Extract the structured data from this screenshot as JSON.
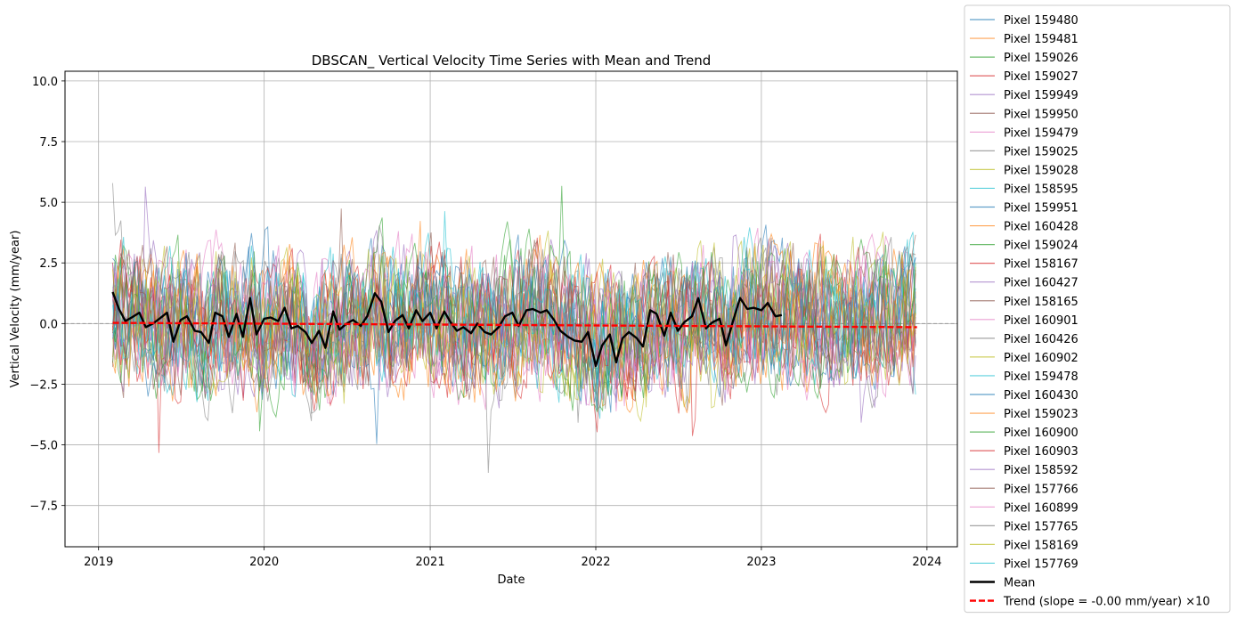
{
  "chart_data": {
    "type": "line",
    "title": "DBSCAN_ Vertical Velocity Time Series with Mean and Trend",
    "xlabel": "Date",
    "ylabel": "Vertical Velocity (mm/year)",
    "xlim": [
      "2018-10-19",
      "2024-03-08"
    ],
    "ylim": [
      -9.2,
      10.4
    ],
    "x_ticks": [
      "2019",
      "2020",
      "2021",
      "2022",
      "2023",
      "2024"
    ],
    "y_ticks": [
      "−7.5",
      "−5.0",
      "−2.5",
      "0.0",
      "2.5",
      "5.0",
      "7.5",
      "10.0"
    ],
    "grid": true,
    "legend_position": "outside-right",
    "date_range": [
      "2019-02-01",
      "2023-12-10"
    ],
    "sampling_interval_days": 6,
    "series": [
      {
        "name": "Pixel 159480",
        "color": "#1f77b4"
      },
      {
        "name": "Pixel 159481",
        "color": "#ff7f0e"
      },
      {
        "name": "Pixel 159026",
        "color": "#2ca02c"
      },
      {
        "name": "Pixel 159027",
        "color": "#d62728"
      },
      {
        "name": "Pixel 159949",
        "color": "#9467bd"
      },
      {
        "name": "Pixel 159950",
        "color": "#8c564b"
      },
      {
        "name": "Pixel 159479",
        "color": "#e377c2"
      },
      {
        "name": "Pixel 159025",
        "color": "#7f7f7f"
      },
      {
        "name": "Pixel 159028",
        "color": "#bcbd22"
      },
      {
        "name": "Pixel 158595",
        "color": "#17becf"
      },
      {
        "name": "Pixel 159951",
        "color": "#1f77b4"
      },
      {
        "name": "Pixel 160428",
        "color": "#ff7f0e"
      },
      {
        "name": "Pixel 159024",
        "color": "#2ca02c"
      },
      {
        "name": "Pixel 158167",
        "color": "#d62728"
      },
      {
        "name": "Pixel 160427",
        "color": "#9467bd"
      },
      {
        "name": "Pixel 158165",
        "color": "#8c564b"
      },
      {
        "name": "Pixel 160901",
        "color": "#e377c2"
      },
      {
        "name": "Pixel 160426",
        "color": "#7f7f7f"
      },
      {
        "name": "Pixel 160902",
        "color": "#bcbd22"
      },
      {
        "name": "Pixel 159478",
        "color": "#17becf"
      },
      {
        "name": "Pixel 160430",
        "color": "#1f77b4"
      },
      {
        "name": "Pixel 159023",
        "color": "#ff7f0e"
      },
      {
        "name": "Pixel 160900",
        "color": "#2ca02c"
      },
      {
        "name": "Pixel 160903",
        "color": "#d62728"
      },
      {
        "name": "Pixel 158592",
        "color": "#9467bd"
      },
      {
        "name": "Pixel 157766",
        "color": "#8c564b"
      },
      {
        "name": "Pixel 160899",
        "color": "#e377c2"
      },
      {
        "name": "Pixel 157765",
        "color": "#7f7f7f"
      },
      {
        "name": "Pixel 158169",
        "color": "#bcbd22"
      },
      {
        "name": "Pixel 157769",
        "color": "#17becf"
      }
    ],
    "mean": {
      "name": "Mean",
      "color": "#000000",
      "points": [
        [
          "2019-02-01",
          1.3
        ],
        [
          "2019-02-15",
          0.6
        ],
        [
          "2019-03-01",
          0.1
        ],
        [
          "2019-03-15",
          0.25
        ],
        [
          "2019-04-01",
          0.45
        ],
        [
          "2019-04-15",
          -0.15
        ],
        [
          "2019-05-01",
          0.0
        ],
        [
          "2019-05-15",
          0.2
        ],
        [
          "2019-06-01",
          0.45
        ],
        [
          "2019-06-15",
          -0.75
        ],
        [
          "2019-07-01",
          0.15
        ],
        [
          "2019-07-15",
          0.3
        ],
        [
          "2019-08-01",
          -0.3
        ],
        [
          "2019-08-15",
          -0.35
        ],
        [
          "2019-09-01",
          -0.8
        ],
        [
          "2019-09-15",
          0.45
        ],
        [
          "2019-10-01",
          0.3
        ],
        [
          "2019-10-15",
          -0.55
        ],
        [
          "2019-11-01",
          0.4
        ],
        [
          "2019-11-15",
          -0.55
        ],
        [
          "2019-12-01",
          1.05
        ],
        [
          "2019-12-15",
          -0.45
        ],
        [
          "2020-01-01",
          0.2
        ],
        [
          "2020-01-15",
          0.25
        ],
        [
          "2020-02-01",
          0.1
        ],
        [
          "2020-02-15",
          0.65
        ],
        [
          "2020-03-01",
          -0.2
        ],
        [
          "2020-03-15",
          -0.1
        ],
        [
          "2020-04-01",
          -0.35
        ],
        [
          "2020-04-15",
          -0.8
        ],
        [
          "2020-05-01",
          -0.3
        ],
        [
          "2020-05-15",
          -1.0
        ],
        [
          "2020-06-01",
          0.5
        ],
        [
          "2020-06-15",
          -0.25
        ],
        [
          "2020-07-01",
          0.0
        ],
        [
          "2020-07-15",
          0.15
        ],
        [
          "2020-08-01",
          -0.1
        ],
        [
          "2020-08-15",
          0.3
        ],
        [
          "2020-09-01",
          1.25
        ],
        [
          "2020-09-15",
          0.9
        ],
        [
          "2020-10-01",
          -0.35
        ],
        [
          "2020-10-15",
          0.1
        ],
        [
          "2020-11-01",
          0.35
        ],
        [
          "2020-11-15",
          -0.2
        ],
        [
          "2020-12-01",
          0.55
        ],
        [
          "2020-12-15",
          0.1
        ],
        [
          "2021-01-01",
          0.45
        ],
        [
          "2021-01-15",
          -0.2
        ],
        [
          "2021-02-01",
          0.5
        ],
        [
          "2021-02-15",
          0.05
        ],
        [
          "2021-03-01",
          -0.3
        ],
        [
          "2021-03-15",
          -0.15
        ],
        [
          "2021-04-01",
          -0.4
        ],
        [
          "2021-04-15",
          0.0
        ],
        [
          "2021-05-01",
          -0.35
        ],
        [
          "2021-05-15",
          -0.45
        ],
        [
          "2021-06-01",
          -0.15
        ],
        [
          "2021-06-15",
          0.3
        ],
        [
          "2021-07-01",
          0.45
        ],
        [
          "2021-07-15",
          -0.1
        ],
        [
          "2021-08-01",
          0.55
        ],
        [
          "2021-08-15",
          0.6
        ],
        [
          "2021-09-01",
          0.45
        ],
        [
          "2021-09-15",
          0.55
        ],
        [
          "2021-10-01",
          0.15
        ],
        [
          "2021-10-15",
          -0.3
        ],
        [
          "2021-11-01",
          -0.55
        ],
        [
          "2021-11-15",
          -0.7
        ],
        [
          "2021-12-01",
          -0.75
        ],
        [
          "2021-12-15",
          -0.35
        ],
        [
          "2022-01-01",
          -1.75
        ],
        [
          "2022-01-15",
          -0.9
        ],
        [
          "2022-02-01",
          -0.45
        ],
        [
          "2022-02-15",
          -1.6
        ],
        [
          "2022-03-01",
          -0.6
        ],
        [
          "2022-03-15",
          -0.35
        ],
        [
          "2022-04-01",
          -0.6
        ],
        [
          "2022-04-15",
          -0.95
        ],
        [
          "2022-05-01",
          0.55
        ],
        [
          "2022-05-15",
          0.4
        ],
        [
          "2022-06-01",
          -0.5
        ],
        [
          "2022-06-15",
          0.45
        ],
        [
          "2022-07-01",
          -0.3
        ],
        [
          "2022-07-15",
          0.05
        ],
        [
          "2022-08-01",
          0.3
        ],
        [
          "2022-08-15",
          1.05
        ],
        [
          "2022-09-01",
          -0.2
        ],
        [
          "2022-09-15",
          0.05
        ],
        [
          "2022-10-01",
          0.2
        ],
        [
          "2022-10-15",
          -0.9
        ],
        [
          "2022-11-01",
          0.2
        ],
        [
          "2022-11-15",
          1.05
        ],
        [
          "2022-12-01",
          0.6
        ],
        [
          "2022-12-15",
          0.65
        ],
        [
          "2023-01-01",
          0.55
        ],
        [
          "2023-01-15",
          0.85
        ],
        [
          "2023-02-01",
          0.3
        ],
        [
          "2023-02-15",
          0.35
        ]
      ]
    },
    "trend": {
      "name": "Trend (slope = -0.00 mm/year) ×10",
      "color": "#ff0000",
      "start": [
        "2019-02-01",
        0.03
      ],
      "end": [
        "2023-12-10",
        -0.15
      ]
    },
    "zero_line": {
      "y": 0.0,
      "color": "#999999",
      "style": "dashed"
    }
  }
}
